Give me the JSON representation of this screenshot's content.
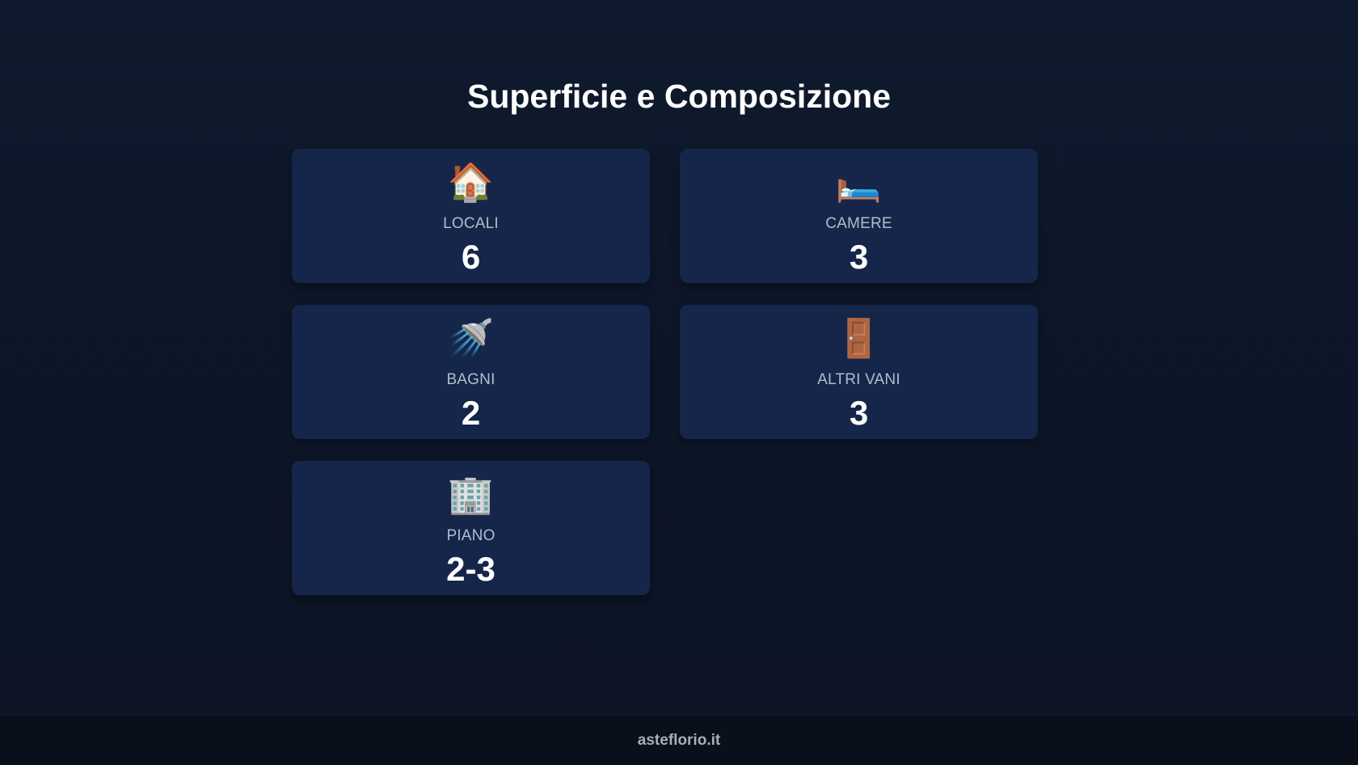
{
  "title": "Superficie e Composizione",
  "cards": [
    {
      "icon": "🏠",
      "icon_name": "house-icon",
      "label": "LOCALI",
      "value": "6"
    },
    {
      "icon": "🛏️",
      "icon_name": "bed-icon",
      "label": "CAMERE",
      "value": "3"
    },
    {
      "icon": "🚿",
      "icon_name": "shower-icon",
      "label": "BAGNI",
      "value": "2"
    },
    {
      "icon": "🚪",
      "icon_name": "door-icon",
      "label": "ALTRI VANI",
      "value": "3"
    },
    {
      "icon": "🏢",
      "icon_name": "building-icon",
      "label": "PIANO",
      "value": "2-3"
    }
  ],
  "footer": {
    "text": "asteflorio.it"
  }
}
